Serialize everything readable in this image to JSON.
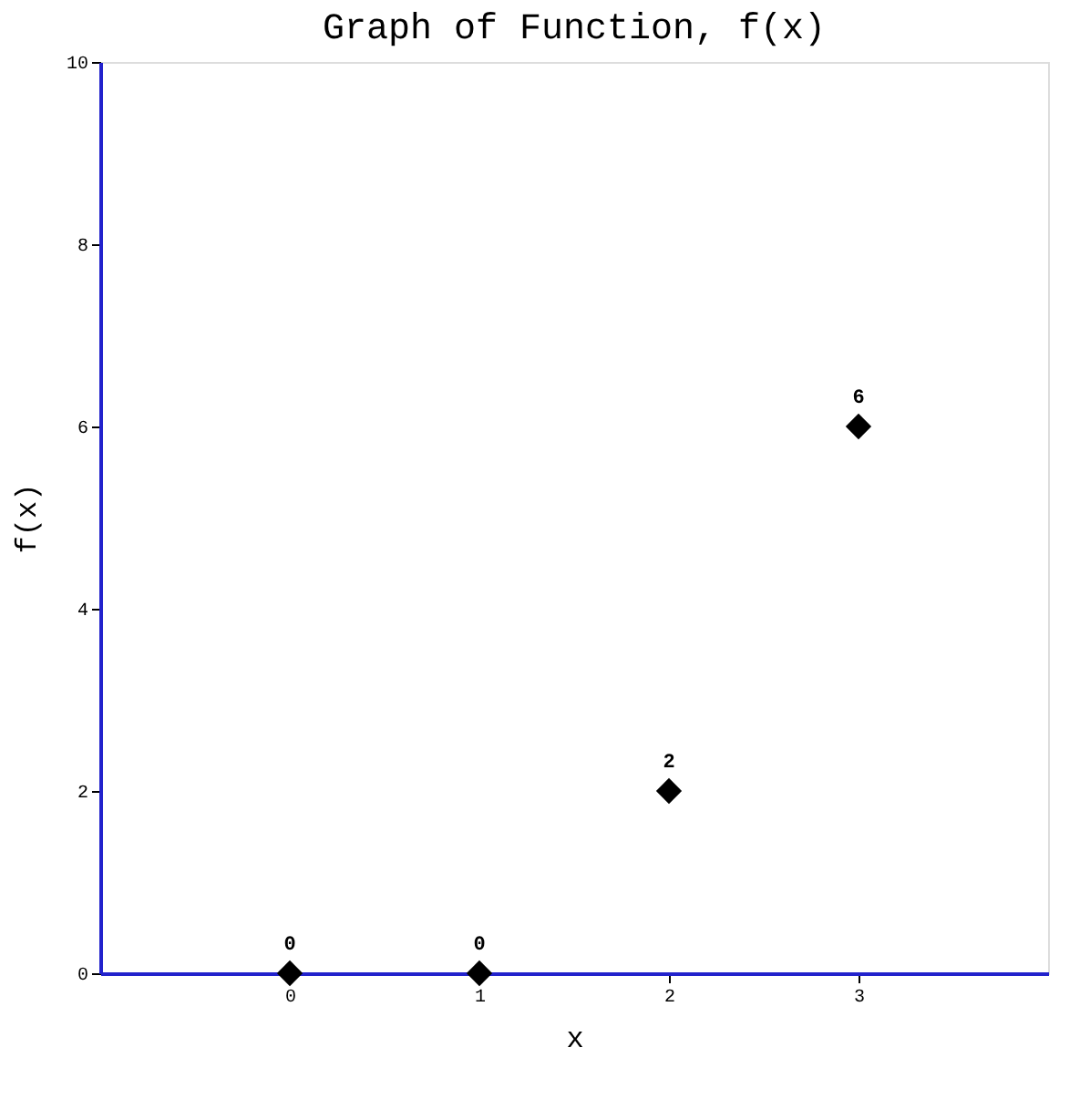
{
  "chart_data": {
    "type": "scatter",
    "title": "Graph of Function, f(x)",
    "xlabel": "x",
    "ylabel": "f(x)",
    "x": [
      0,
      1,
      2,
      3
    ],
    "series": [
      {
        "color": "#000000",
        "values": [
          0,
          0,
          2,
          6
        ]
      }
    ],
    "xlim": [
      -1,
      4
    ],
    "xticks": [
      0,
      1,
      2,
      3
    ],
    "ylim": [
      0,
      10
    ],
    "yticks": [
      0,
      2,
      4,
      6,
      8,
      10
    ],
    "marker": "diamond",
    "data_labels": true,
    "grid": false
  }
}
